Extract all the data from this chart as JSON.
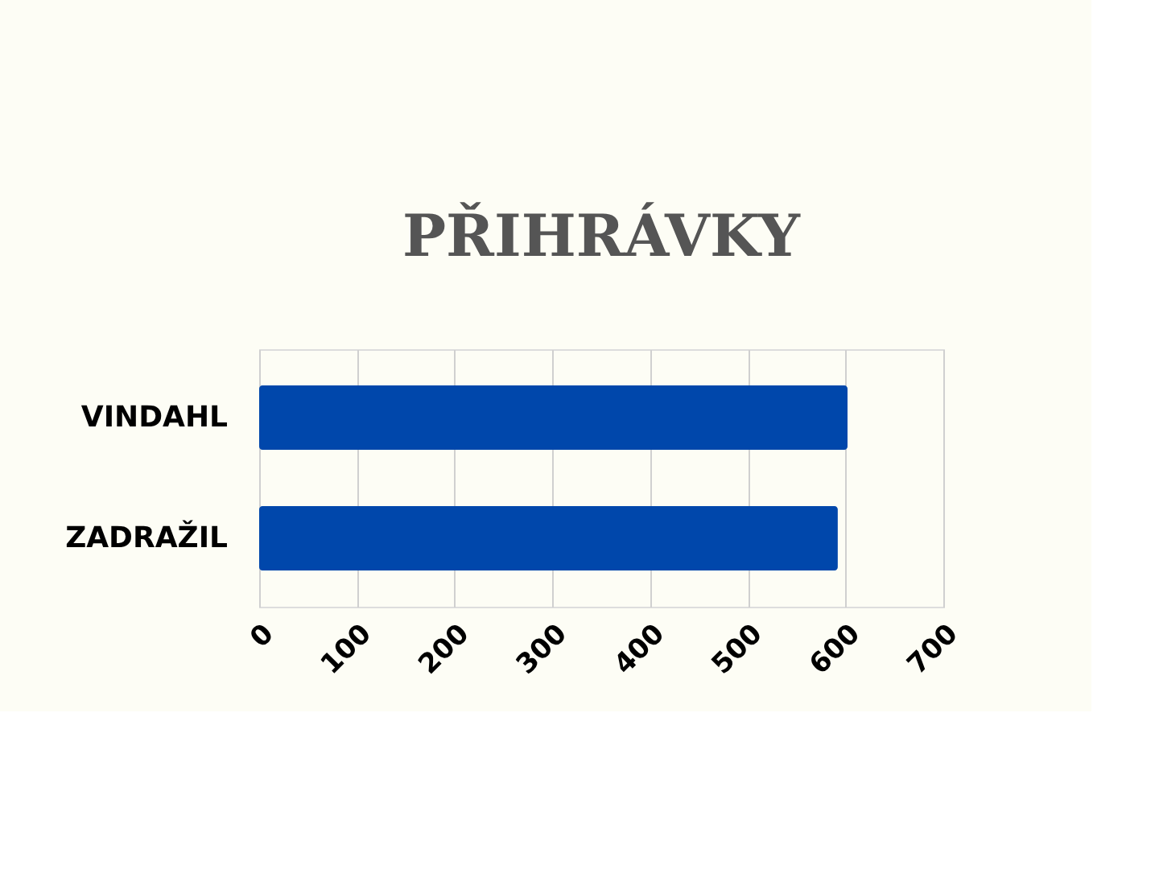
{
  "chart_data": {
    "type": "bar",
    "orientation": "horizontal",
    "title": "PŘIHRÁVKY",
    "categories": [
      "VINDAHL",
      "ZADRAŽIL"
    ],
    "values": [
      602,
      592
    ],
    "color": "#0047ab",
    "xlim": [
      0,
      700
    ],
    "xticks": [
      0,
      100,
      200,
      300,
      400,
      500,
      600,
      700
    ],
    "grid": "x"
  }
}
